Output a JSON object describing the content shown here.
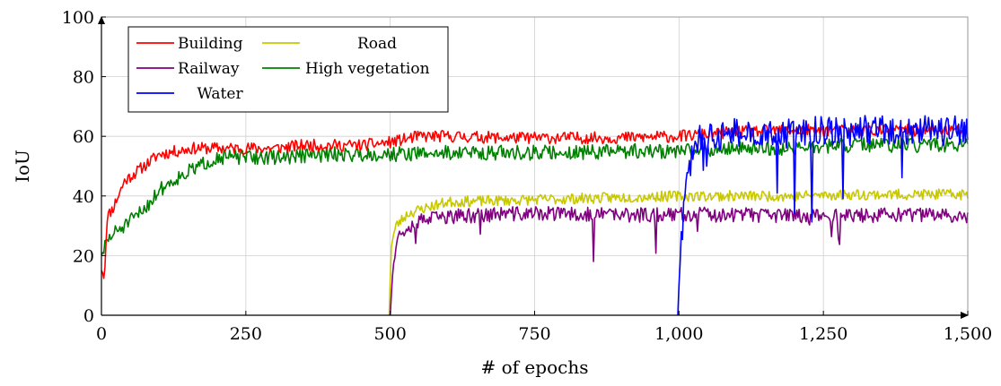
{
  "chart_data": {
    "type": "line",
    "xlabel": "# of epochs",
    "ylabel": "IoU",
    "xlim": [
      0,
      1500
    ],
    "ylim": [
      0,
      100
    ],
    "xticks": [
      0,
      250,
      500,
      750,
      1000,
      1250,
      1500
    ],
    "xtick_labels": [
      "0",
      "250",
      "500",
      "750",
      "1,000",
      "1,250",
      "1,500"
    ],
    "yticks": [
      0,
      20,
      40,
      60,
      80,
      100
    ],
    "ytick_labels": [
      "0",
      "20",
      "40",
      "60",
      "80",
      "100"
    ],
    "grid": true,
    "legend_position": "top-left",
    "series": [
      {
        "name": "Building",
        "color": "#ff0000",
        "x": [
          0,
          5,
          10,
          20,
          40,
          60,
          80,
          100,
          130,
          160,
          200,
          250,
          300,
          350,
          400,
          450,
          500,
          550,
          600,
          700,
          800,
          900,
          1000,
          1100,
          1200,
          1300,
          1400,
          1500
        ],
        "y": [
          15,
          13,
          33,
          36,
          45,
          48,
          51,
          54,
          55,
          56,
          56,
          56,
          56,
          57,
          57,
          57,
          58,
          60,
          60,
          59.5,
          59.5,
          59.5,
          60,
          61.5,
          62,
          62,
          62,
          62
        ],
        "noise": 2.0,
        "seed": 11
      },
      {
        "name": "Road",
        "color": "#c8c800",
        "x": [
          498,
          502,
          510,
          530,
          560,
          600,
          700,
          800,
          900,
          1000,
          1100,
          1200,
          1300,
          1400,
          1500
        ],
        "y": [
          0,
          24,
          30,
          34,
          36,
          38,
          38.5,
          39,
          39.5,
          40,
          40,
          40,
          40.5,
          40.5,
          40.5
        ],
        "noise": 1.8,
        "seed": 23
      },
      {
        "name": "Railway",
        "color": "#800080",
        "x": [
          500,
          505,
          512,
          530,
          560,
          600,
          700,
          800,
          900,
          1000,
          1100,
          1200,
          1300,
          1400,
          1500
        ],
        "y": [
          0,
          18,
          26,
          30,
          32,
          33,
          34,
          34,
          33.5,
          34,
          33.5,
          33.5,
          33.5,
          33.5,
          33.5
        ],
        "noise": 2.5,
        "seed": 37
      },
      {
        "name": "High vegetation",
        "color": "#008000",
        "x": [
          0,
          10,
          25,
          40,
          60,
          80,
          100,
          130,
          160,
          200,
          250,
          300,
          400,
          500,
          600,
          700,
          800,
          900,
          1000,
          1100,
          1200,
          1300,
          1400,
          1500
        ],
        "y": [
          20,
          25,
          28,
          30,
          33,
          37,
          42,
          46,
          49,
          53,
          53,
          53,
          54,
          54,
          54.5,
          54.5,
          54.5,
          55,
          55,
          56,
          56,
          57,
          57,
          57
        ],
        "noise": 2.5,
        "seed": 51
      },
      {
        "name": "Water",
        "color": "#0000ff",
        "x": [
          998,
          1002,
          1008,
          1015,
          1025,
          1040,
          1060,
          1100,
          1150,
          1200,
          1250,
          1300,
          1350,
          1400,
          1450,
          1500
        ],
        "y": [
          0,
          20,
          35,
          45,
          55,
          60,
          60,
          61,
          61,
          61,
          62,
          62,
          62,
          62,
          62,
          62
        ],
        "noise": 5.0,
        "seed": 73
      }
    ]
  }
}
